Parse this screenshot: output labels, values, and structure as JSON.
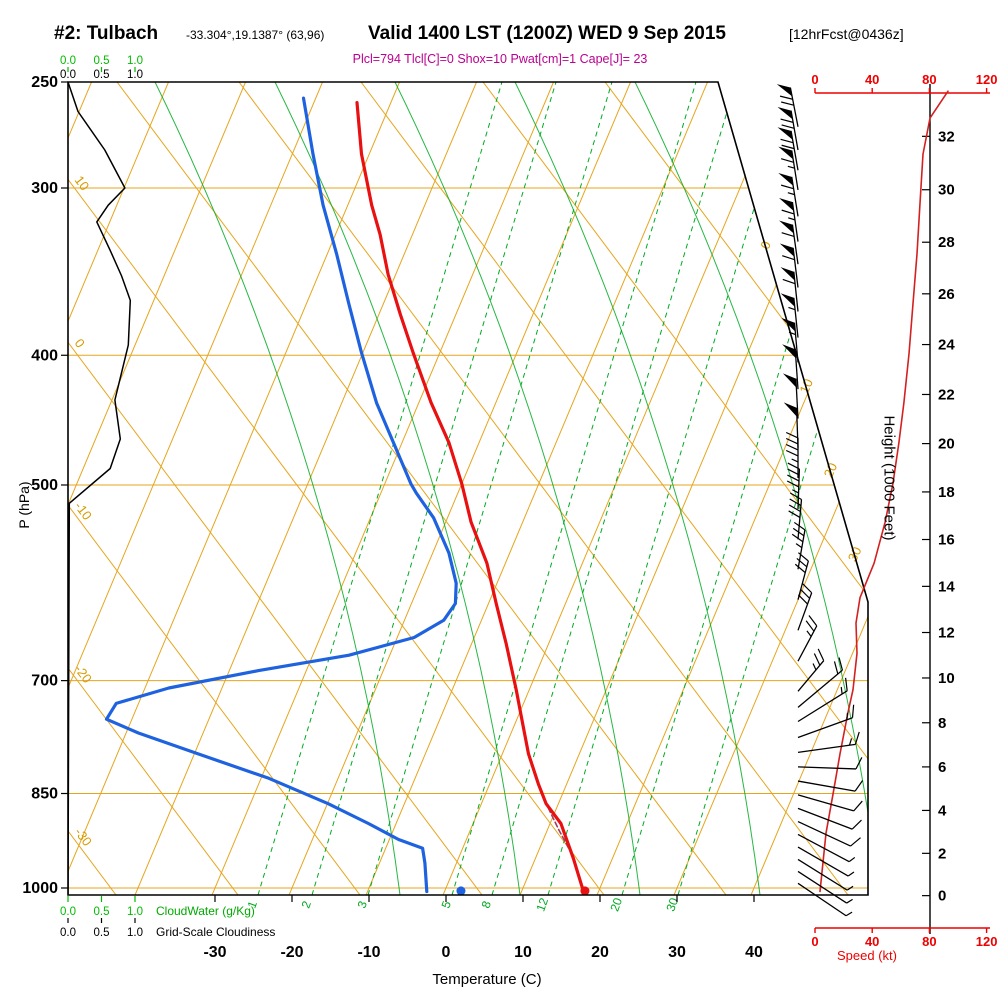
{
  "header": {
    "station": "#2: Tulbach",
    "coords": "-33.304°,19.1387° (63,96)",
    "valid": "Valid 1400 LST (1200Z) WED 9 Sep 2015",
    "forecast": "[12hrFcst@0436z]",
    "params": "Plcl=794 Tlcl[C]=0 Shox=10 Pwat[cm]=1 Cape[J]= 23"
  },
  "axes": {
    "pressure": {
      "title": "P (hPa)",
      "ticks": [
        250,
        300,
        400,
        500,
        700,
        850,
        1000
      ]
    },
    "temperature": {
      "title": "Temperature (C)",
      "ticks": [
        -30,
        -20,
        -10,
        0,
        10,
        20,
        30,
        40
      ]
    },
    "height": {
      "title": "Height (1000 Feet)",
      "ticks": [
        0,
        2,
        4,
        6,
        8,
        10,
        12,
        14,
        16,
        18,
        20,
        22,
        24,
        26,
        28,
        30,
        32
      ]
    },
    "speed": {
      "title": "Speed (kt)",
      "ticks": [
        0,
        40,
        80,
        120
      ]
    },
    "cloudwater": {
      "title": "CloudWater (g/Kg)",
      "ticks": [
        "0.0",
        "0.5",
        "1.0"
      ]
    },
    "cloudiness": {
      "title": "Grid-Scale Cloudiness",
      "ticks": [
        "0.0",
        "0.5",
        "1.0"
      ]
    }
  },
  "colors": {
    "grid_orange": "#e6a51e",
    "grid_green": "#00aa22",
    "temperature_curve": "#e81010",
    "dewpoint_curve": "#1e62e0",
    "parcel_curve": "#a04060",
    "speed_line": "#d42020",
    "speed_axis": "#ee0000",
    "params_text": "#bb0090",
    "cloudwater": "#00bb00",
    "black": "#000000"
  },
  "chart_data": {
    "type": "skewt-logp-sounding",
    "pressure_range_hPa": [
      250,
      1000
    ],
    "temperature_axis_range_C": [
      -50,
      55
    ],
    "isobars_hPa": [
      300,
      400,
      500,
      700,
      850,
      1000
    ],
    "isotherm_labels_right_C": [
      0,
      10,
      20,
      30
    ],
    "dry_adiabat_labels_C": [
      10,
      0,
      -10,
      -20,
      -30
    ],
    "mixing_ratio_labels_gkg": [
      1,
      2,
      3,
      5,
      8,
      12,
      20,
      30
    ],
    "temperature_profile": [
      [
        1009,
        18.2
      ],
      [
        950,
        14.9
      ],
      [
        895,
        11.4
      ],
      [
        865,
        8.4
      ],
      [
        836,
        6.3
      ],
      [
        794,
        3.4
      ],
      [
        754,
        1.0
      ],
      [
        711,
        -1.7
      ],
      [
        657,
        -5.5
      ],
      [
        613,
        -9.0
      ],
      [
        572,
        -12.4
      ],
      [
        533,
        -16.7
      ],
      [
        499,
        -20.0
      ],
      [
        465,
        -23.9
      ],
      [
        434,
        -28.4
      ],
      [
        398,
        -33.5
      ],
      [
        373,
        -37.2
      ],
      [
        348,
        -41.0
      ],
      [
        325,
        -44.2
      ],
      [
        309,
        -46.9
      ],
      [
        283,
        -51.0
      ],
      [
        259,
        -54.4
      ]
    ],
    "dewpoint_profile": [
      [
        1006,
        -2.3
      ],
      [
        958,
        -4.1
      ],
      [
        934,
        -5.2
      ],
      [
        920,
        -8.8
      ],
      [
        895,
        -13.6
      ],
      [
        865,
        -19.9
      ],
      [
        828,
        -29.0
      ],
      [
        794,
        -39.5
      ],
      [
        766,
        -48.4
      ],
      [
        748,
        -53.3
      ],
      [
        728,
        -52.9
      ],
      [
        709,
        -46.9
      ],
      [
        688,
        -36.2
      ],
      [
        670,
        -25.3
      ],
      [
        650,
        -17.8
      ],
      [
        631,
        -14.9
      ],
      [
        613,
        -14.3
      ],
      [
        592,
        -15.3
      ],
      [
        562,
        -17.9
      ],
      [
        529,
        -21.8
      ],
      [
        507,
        -25.4
      ],
      [
        499,
        -26.6
      ],
      [
        465,
        -31.1
      ],
      [
        434,
        -35.5
      ],
      [
        398,
        -40.2
      ],
      [
        366,
        -44.5
      ],
      [
        336,
        -48.8
      ],
      [
        309,
        -53.2
      ],
      [
        283,
        -57.3
      ],
      [
        257,
        -61.6
      ]
    ],
    "parcel_path": [
      [
        1009,
        18.2
      ],
      [
        950,
        15.0
      ],
      [
        905,
        11.5
      ],
      [
        870,
        8.8
      ],
      [
        842,
        6.8
      ]
    ],
    "surface_temp_marker": [
      1005,
      18.2
    ],
    "surface_dewpoint_marker": [
      1005,
      2.1
    ],
    "wind_speed_profile_kt": [
      [
        1006,
        3.5
      ],
      [
        910,
        7.7
      ],
      [
        851,
        12.6
      ],
      [
        794,
        17.5
      ],
      [
        740,
        23.0
      ],
      [
        711,
        26.6
      ],
      [
        668,
        29.4
      ],
      [
        634,
        28.7
      ],
      [
        607,
        31.5
      ],
      [
        572,
        41.3
      ],
      [
        533,
        49.0
      ],
      [
        499,
        54.5
      ],
      [
        465,
        58.7
      ],
      [
        434,
        62.2
      ],
      [
        399,
        65.7
      ],
      [
        366,
        68.5
      ],
      [
        336,
        71.3
      ],
      [
        308,
        73.4
      ],
      [
        283,
        75.5
      ],
      [
        266,
        80.4
      ],
      [
        254,
        93.0
      ]
    ],
    "wind_barbs": [
      [
        270,
        72,
        101
      ],
      [
        281,
        70,
        100
      ],
      [
        291,
        69,
        100
      ],
      [
        301,
        68,
        99
      ],
      [
        315,
        66,
        99
      ],
      [
        329,
        64,
        98
      ],
      [
        342,
        63,
        98
      ],
      [
        356,
        61,
        97
      ],
      [
        371,
        59,
        96
      ],
      [
        388,
        57,
        96
      ],
      [
        405,
        55,
        95
      ],
      [
        424,
        53,
        94
      ],
      [
        446,
        51,
        93
      ],
      [
        469,
        49,
        92
      ],
      [
        494,
        47,
        90
      ],
      [
        521,
        44,
        88
      ],
      [
        549,
        41,
        85
      ],
      [
        578,
        38,
        80
      ],
      [
        609,
        31,
        75
      ],
      [
        642,
        29,
        70
      ],
      [
        677,
        27,
        62
      ],
      [
        713,
        25,
        50
      ],
      [
        733,
        21,
        40
      ],
      [
        751,
        18,
        32
      ],
      [
        772,
        16,
        20
      ],
      [
        792,
        14,
        8
      ],
      [
        812,
        13,
        -2
      ],
      [
        832,
        12,
        -10
      ],
      [
        852,
        11,
        -16
      ],
      [
        872,
        10,
        -21
      ],
      [
        892,
        9,
        -25
      ],
      [
        912,
        8,
        -28
      ],
      [
        932,
        7,
        -30
      ],
      [
        952,
        6,
        -32
      ],
      [
        972,
        5,
        -33
      ],
      [
        992,
        4,
        -34
      ]
    ],
    "cloudiness_profile": [
      [
        250,
        0
      ],
      [
        263,
        0.15
      ],
      [
        281,
        0.55
      ],
      [
        300,
        0.85
      ],
      [
        309,
        0.6
      ],
      [
        318,
        0.43
      ],
      [
        334,
        0.63
      ],
      [
        349,
        0.8
      ],
      [
        364,
        0.93
      ],
      [
        393,
        0.9
      ],
      [
        432,
        0.7
      ],
      [
        462,
        0.78
      ],
      [
        486,
        0.63
      ],
      [
        516,
        0.02
      ],
      [
        1010,
        0
      ]
    ],
    "cloudwater_profile": [
      [
        250,
        0
      ],
      [
        1010,
        0
      ]
    ]
  }
}
